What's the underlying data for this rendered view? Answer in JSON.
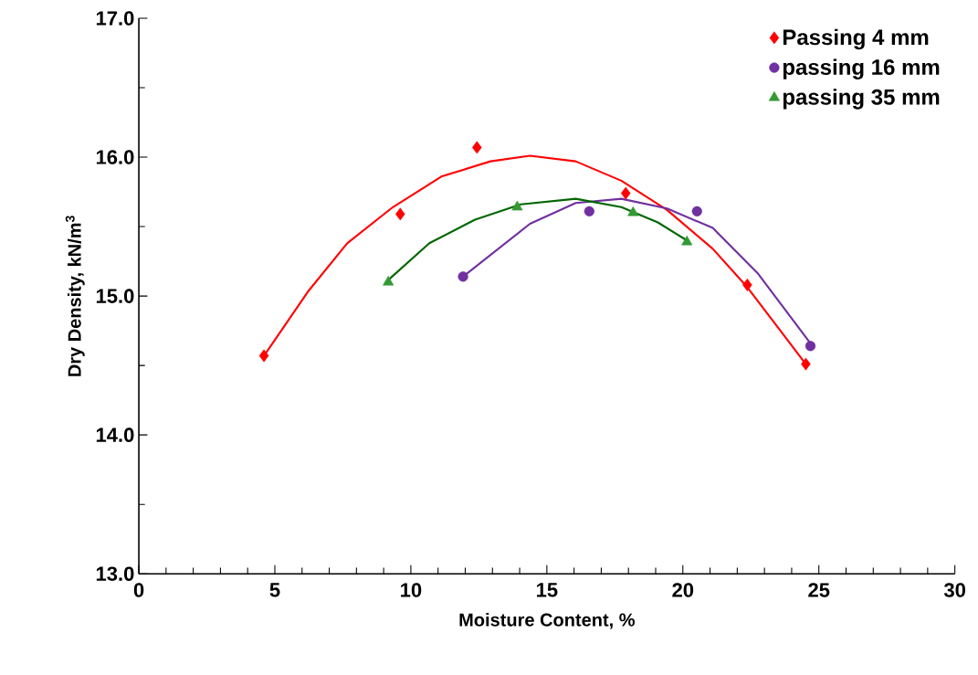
{
  "chart_data": {
    "type": "scatter",
    "xlabel": "Moisture Content, %",
    "ylabel": "Dry Density,  kN/m$^{3}$",
    "xlim": [
      0,
      30
    ],
    "ylim": [
      13,
      17
    ],
    "xticks": [
      0,
      {
        "value": 1,
        "label": null
      },
      {
        "value": 2,
        "label": null
      },
      {
        "value": 3,
        "label": null
      },
      {
        "value": 4,
        "label": null
      },
      5,
      {
        "value": 6,
        "label": null
      },
      {
        "value": 7,
        "label": null
      },
      {
        "value": 8,
        "label": null
      },
      {
        "value": 9,
        "label": null
      },
      10,
      {
        "value": 11,
        "label": null
      },
      {
        "value": 12,
        "label": null
      },
      {
        "value": 13,
        "label": null
      },
      {
        "value": 14,
        "label": null
      },
      15,
      {
        "value": 16,
        "label": null
      },
      {
        "value": 17,
        "label": null
      },
      {
        "value": 18,
        "label": null
      },
      {
        "value": 19,
        "label": null
      },
      20,
      {
        "value": 21,
        "label": null
      },
      {
        "value": 22,
        "label": null
      },
      {
        "value": 23,
        "label": null
      },
      {
        "value": 24,
        "label": null
      },
      25,
      {
        "value": 26,
        "label": null
      },
      {
        "value": 27,
        "label": null
      },
      {
        "value": 28,
        "label": null
      },
      {
        "value": 29,
        "label": null
      },
      30
    ],
    "yticks": [
      {
        "value": 13,
        "label": "13.0"
      },
      {
        "value": 13.5,
        "label": null
      },
      {
        "value": 14,
        "label": "14.0"
      },
      {
        "value": 14.5,
        "label": null
      },
      {
        "value": 15,
        "label": "15.0"
      },
      {
        "value": 15.5,
        "label": null
      },
      {
        "value": 16,
        "label": "16.0"
      },
      {
        "value": 16.5,
        "label": null
      },
      {
        "value": 17,
        "label": "17.0"
      }
    ],
    "grid": false,
    "legend": "top right",
    "series": [
      {
        "name": "Passing 4 mm",
        "color": "#ff0000",
        "marker": "diamond",
        "x": [
          4.6,
          9.61,
          12.43,
          17.9,
          22.37,
          24.52
        ],
        "values": [
          14.57,
          15.59,
          16.07,
          15.74,
          15.08,
          14.51
        ]
      },
      {
        "name": "passing 16 mm",
        "color": "#7030a0",
        "marker": "circle",
        "x": [
          11.92,
          16.56,
          20.52,
          24.69
        ],
        "values": [
          15.14,
          15.61,
          15.61,
          14.64
        ]
      },
      {
        "name": "passing 35 mm",
        "color": "#339933",
        "marker": "triangle",
        "x": [
          9.17,
          13.91,
          18.17,
          20.15
        ],
        "values": [
          15.1,
          15.64,
          15.6,
          15.39
        ]
      },
      {
        "type": "line",
        "color": "#ff0000",
        "marker": "none",
        "x": [
          4.64,
          6.21,
          7.66,
          9.34,
          11.12,
          12.93,
          14.38,
          16.06,
          17.74,
          19.42,
          21.1,
          22.34,
          23.55,
          24.52
        ],
        "values": [
          14.58,
          15.03,
          15.38,
          15.64,
          15.86,
          15.97,
          16.01,
          15.97,
          15.83,
          15.62,
          15.34,
          15.07,
          14.76,
          14.51
        ]
      },
      {
        "type": "line",
        "color": "#7030a0",
        "marker": "none",
        "x": [
          11.92,
          14.38,
          16.06,
          17.74,
          19.42,
          21.1,
          22.77,
          24.69
        ],
        "values": [
          15.14,
          15.52,
          15.67,
          15.7,
          15.63,
          15.49,
          15.16,
          14.66
        ]
      },
      {
        "type": "line",
        "color": "#006600",
        "marker": "none",
        "x": [
          9.14,
          10.68,
          12.36,
          14.04,
          16.06,
          17.74,
          19.08,
          20.15
        ],
        "values": [
          15.11,
          15.38,
          15.55,
          15.66,
          15.7,
          15.64,
          15.53,
          15.4
        ]
      }
    ]
  }
}
